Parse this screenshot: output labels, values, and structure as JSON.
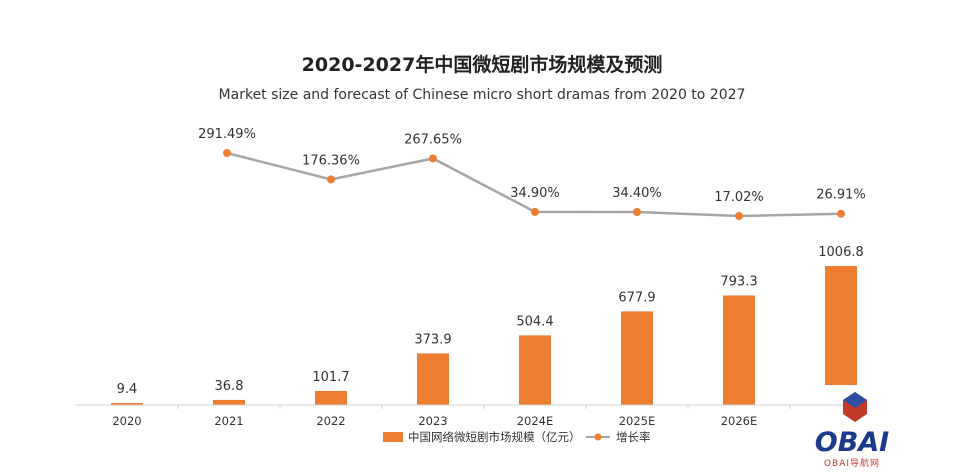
{
  "chart_data": {
    "type": "bar",
    "title": "2020-2027年中国微短剧市场规模及预测",
    "subtitle": "Market size and forecast of Chinese micro short dramas from 2020 to 2027",
    "categories": [
      "2020",
      "2021",
      "2022",
      "2023",
      "2024E",
      "2025E",
      "2026E",
      ""
    ],
    "series": [
      {
        "name": "中国网络微短剧市场规模（亿元）",
        "type": "bar",
        "color": "#ED7D31",
        "values": [
          9.4,
          36.8,
          101.7,
          373.9,
          504.4,
          677.9,
          793.3,
          1006.8
        ],
        "labels": [
          "9.4",
          "36.8",
          "101.7",
          "373.9",
          "504.4",
          "677.9",
          "793.3",
          "1006.8"
        ]
      },
      {
        "name": "增长率",
        "type": "line",
        "color": "#A6A6A6",
        "marker_color": "#ED7D31",
        "values": [
          null,
          291.49,
          176.36,
          267.65,
          34.9,
          34.4,
          17.02,
          26.91
        ],
        "labels": [
          "",
          "291.49%",
          "176.36%",
          "267.65%",
          "34.90%",
          "34.40%",
          "17.02%",
          "26.91%"
        ]
      }
    ],
    "grid": false,
    "legend_position": "bottom"
  },
  "watermark": {
    "logo_text": "OBAI",
    "sub_text": "OBAI导航网"
  }
}
